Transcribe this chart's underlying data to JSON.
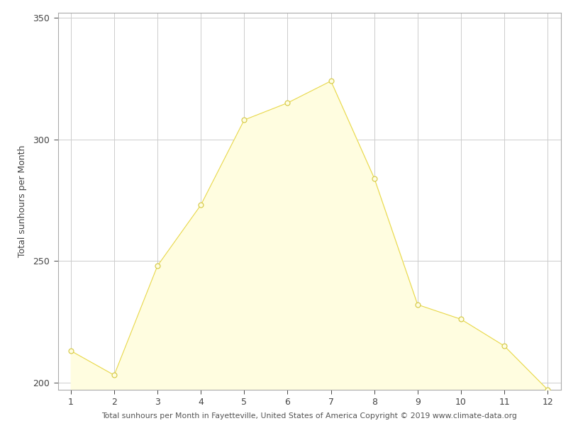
{
  "months": [
    1,
    2,
    3,
    4,
    5,
    6,
    7,
    8,
    9,
    10,
    11,
    12
  ],
  "sunhours": [
    213,
    203,
    248,
    273,
    308,
    315,
    324,
    284,
    232,
    226,
    215,
    197
  ],
  "fill_color": "#FFFDE0",
  "line_color": "#E8D84A",
  "marker_face_color": "#FFFDE0",
  "marker_edge_color": "#D4C840",
  "ylabel": "Total sunhours per Month",
  "xlabel": "Total sunhours per Month in Fayetteville, United States of America Copyright © 2019 www.climate-data.org",
  "ylim": [
    197,
    352
  ],
  "xlim": [
    0.7,
    12.3
  ],
  "yticks": [
    200,
    250,
    300,
    350
  ],
  "xticks": [
    1,
    2,
    3,
    4,
    5,
    6,
    7,
    8,
    9,
    10,
    11,
    12
  ],
  "grid_color": "#cccccc",
  "bg_color": "#ffffff",
  "ylabel_fontsize": 9,
  "xlabel_fontsize": 7.8,
  "tick_fontsize": 9,
  "spine_color": "#aaaaaa"
}
